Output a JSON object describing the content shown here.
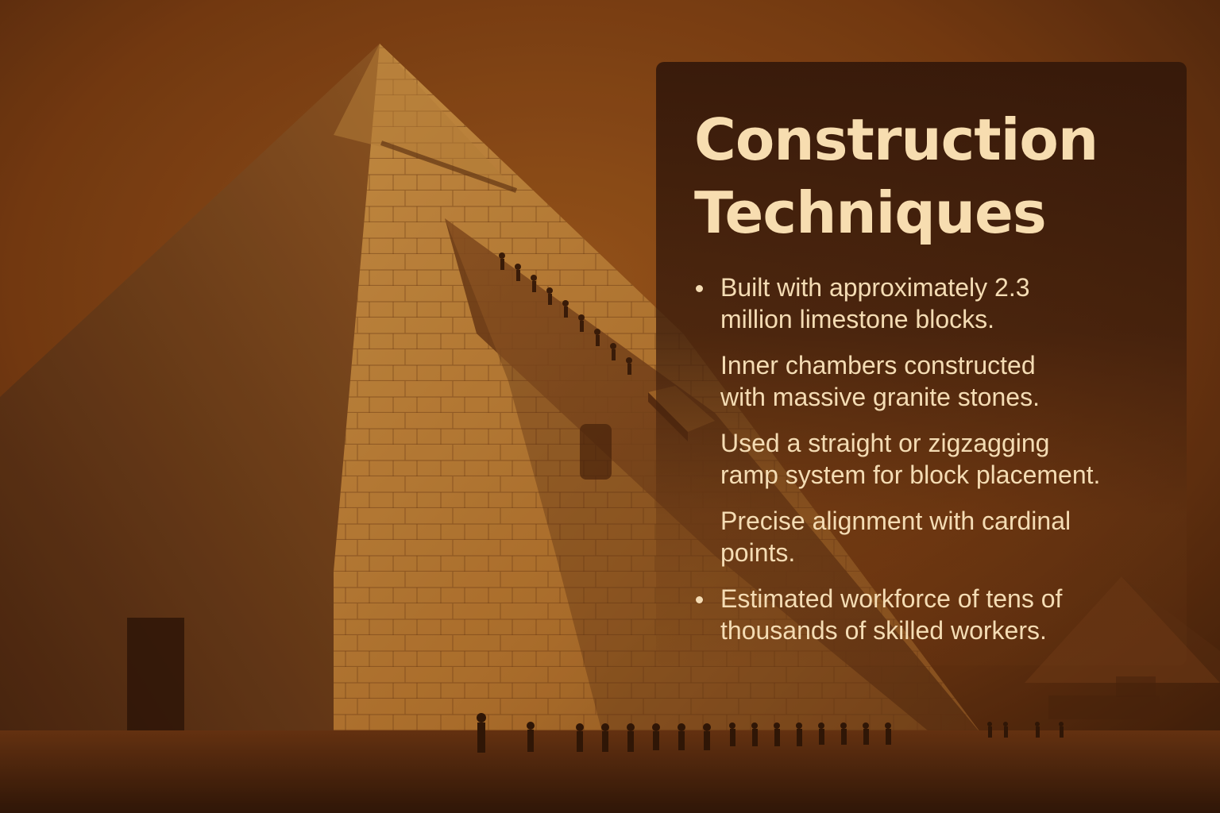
{
  "slide": {
    "title_line1": "Construction",
    "title_line2": "Techniques",
    "facts": [
      {
        "text_line1": "Built with approximately 2.3",
        "text_line2": "million limestone blocks.",
        "bullet": true
      },
      {
        "text_line1": "Inner chambers constructed",
        "text_line2": "with massive granite stones.",
        "bullet": false
      },
      {
        "text_line1": "Used a straight or zigzagging",
        "text_line2": "ramp system for block placement.",
        "bullet": false
      },
      {
        "text_line1": "Precise alignment with cardinal",
        "text_line2": "points.",
        "bullet": false
      },
      {
        "text_line1": "Estimated workforce of tens of",
        "text_line2": "thousands of skilled workers.",
        "bullet": true
      }
    ]
  },
  "colors": {
    "sky": "#7a3d10",
    "sand": "#5a2e0e",
    "pyramid_lit": "#c88a3c",
    "pyramid_shadow": "#7a4518",
    "panel": "#34180a",
    "text": "#f4dcb4",
    "title": "#f7ddb0"
  }
}
